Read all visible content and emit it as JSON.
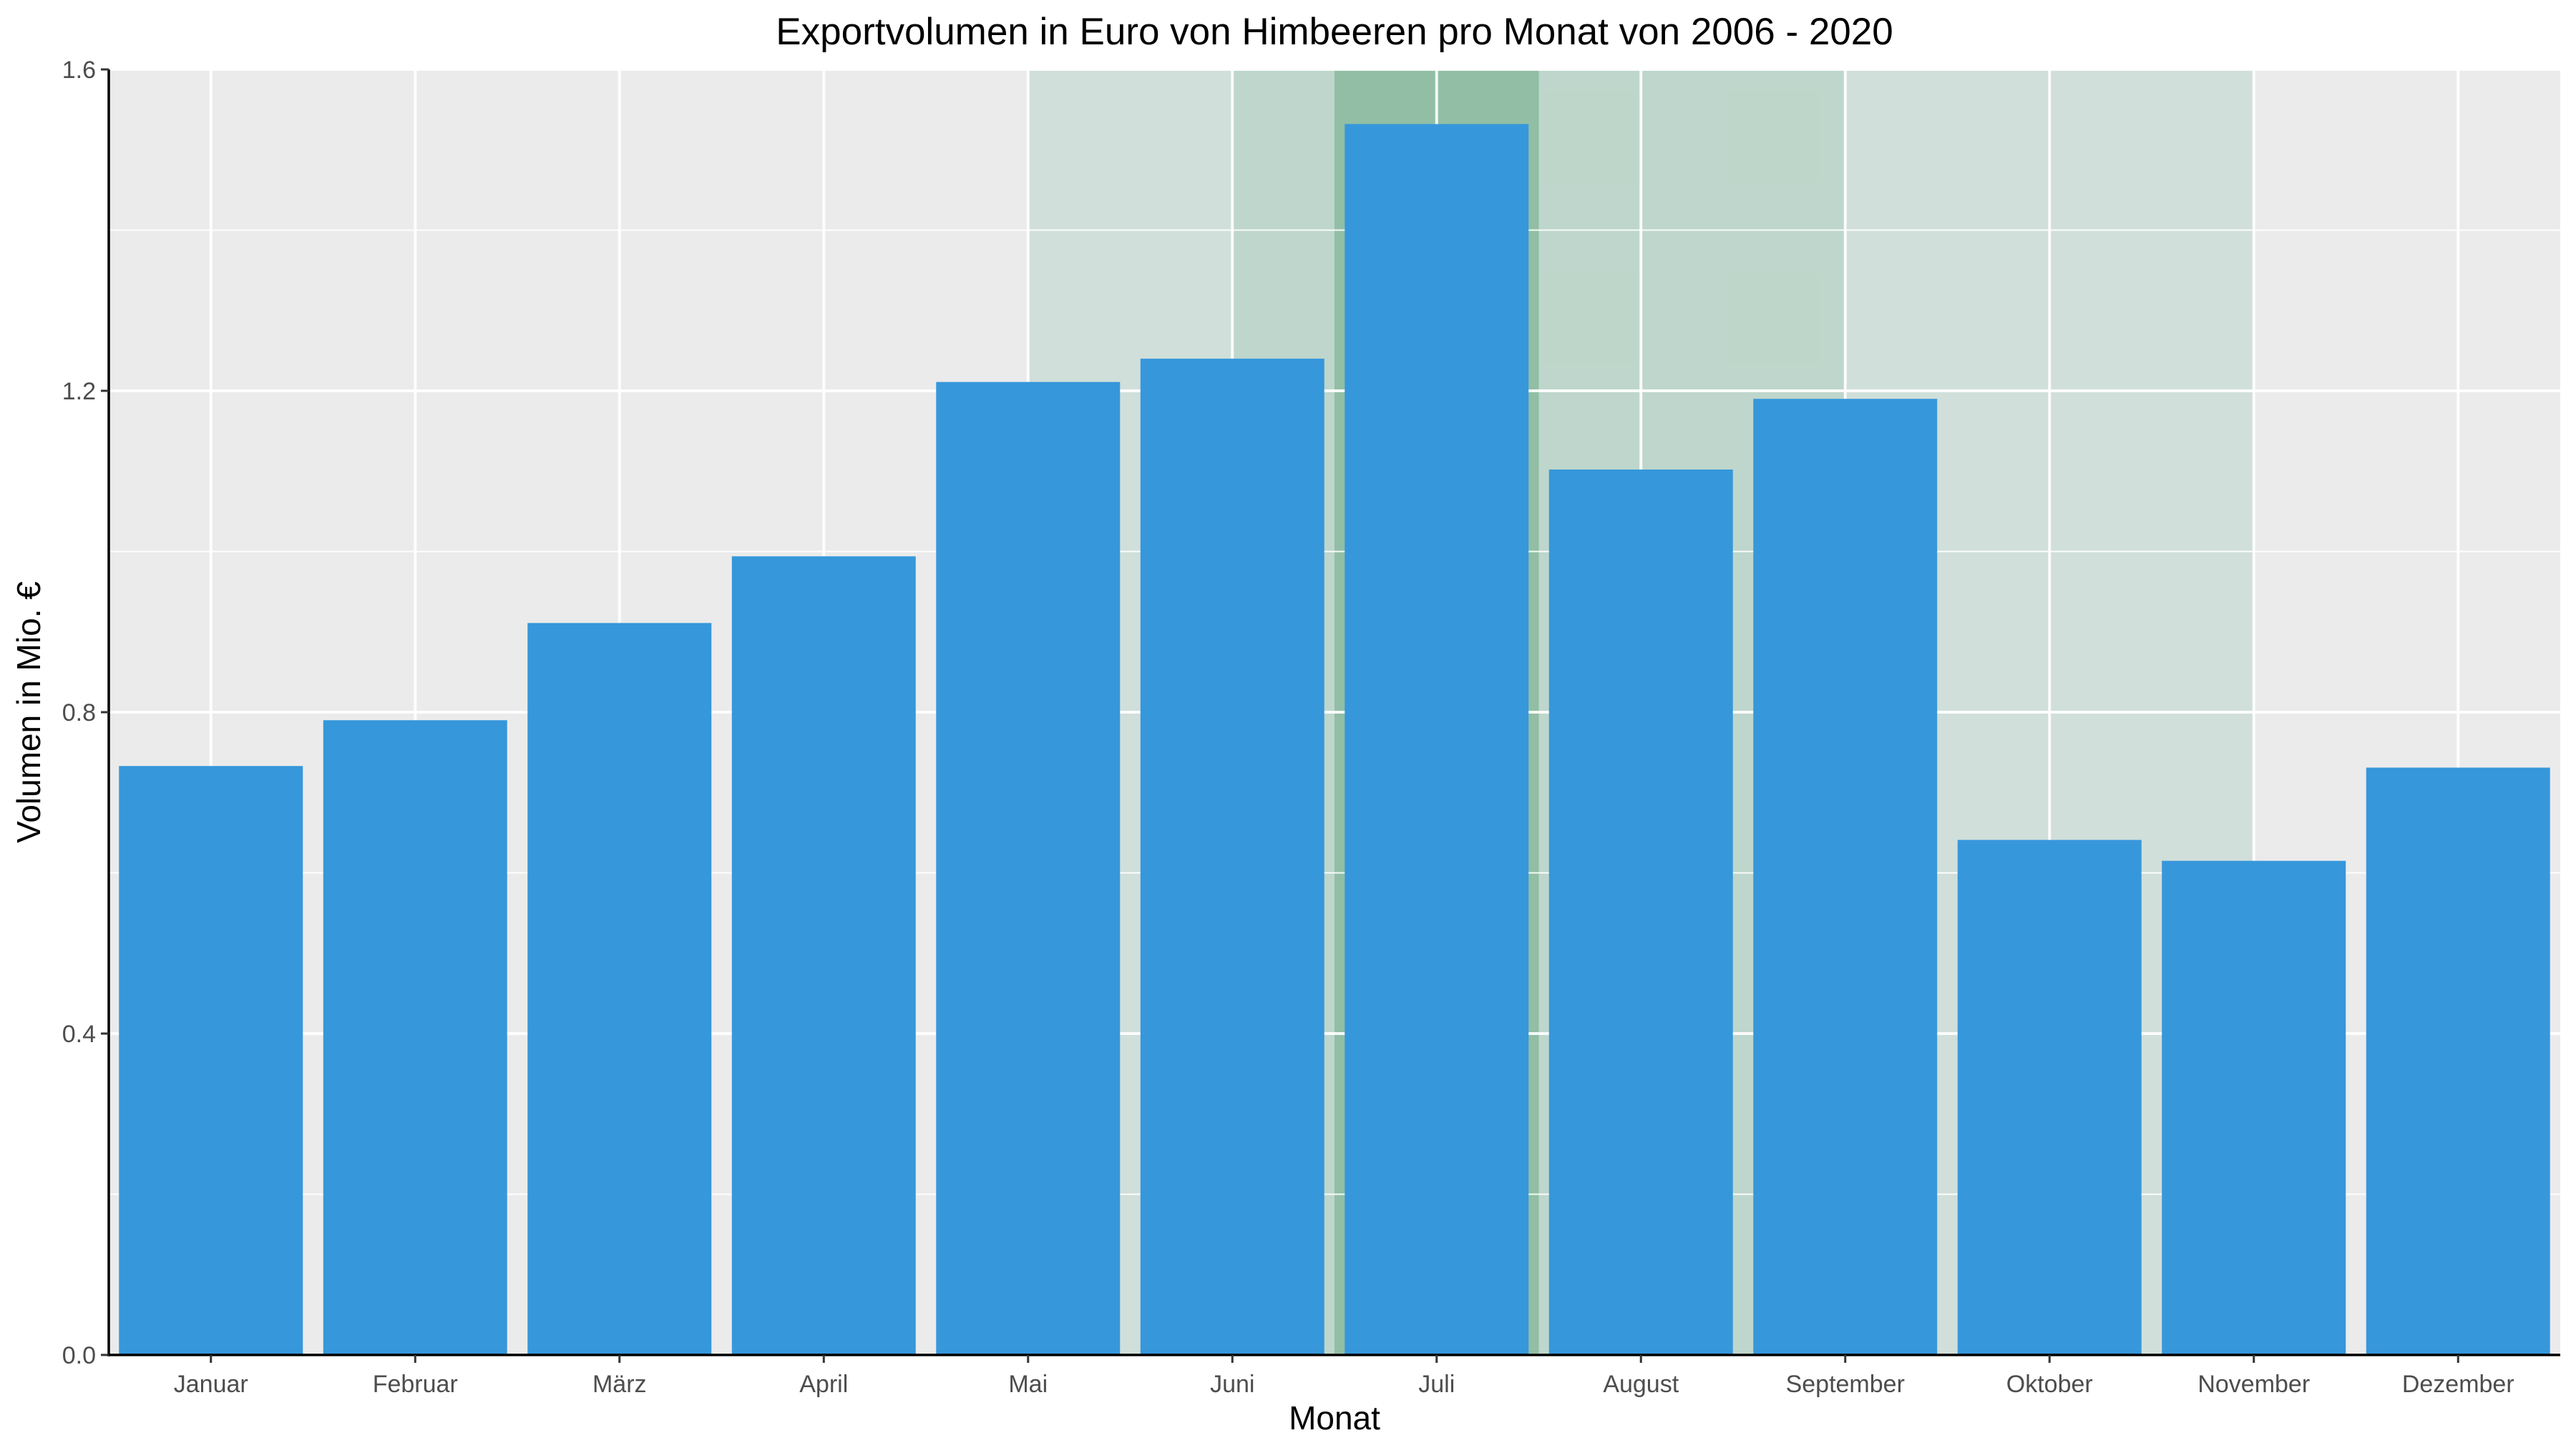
{
  "chart_data": {
    "type": "bar",
    "title": "Exportvolumen in Euro von Himbeeren pro Monat von 2006 - 2020",
    "xlabel": "Monat",
    "ylabel": "Volumen in Mio. €",
    "categories": [
      "Januar",
      "Februar",
      "März",
      "April",
      "Mai",
      "Juni",
      "Juli",
      "August",
      "September",
      "Oktober",
      "November",
      "Dezember"
    ],
    "values": [
      0.733,
      0.79,
      0.911,
      0.994,
      1.211,
      1.24,
      1.532,
      1.102,
      1.19,
      0.641,
      0.615,
      0.731
    ],
    "ylim": [
      0,
      1.6
    ],
    "yticks": [
      0.0,
      0.4,
      0.8,
      1.2,
      1.6
    ],
    "ytick_labels": [
      "0.0",
      "0.4",
      "0.8",
      "1.2",
      "1.6"
    ],
    "grid": true,
    "legend": "none",
    "highlight_bands": [
      {
        "from": "Mai",
        "to": "November",
        "level": "light"
      },
      {
        "from": "Juni",
        "to": "September",
        "level": "medium"
      },
      {
        "from": "Juli",
        "to": "Juli",
        "level": "strong"
      }
    ],
    "colors": {
      "bar": "#3697DB",
      "panel": "#EBEBEB",
      "grid": "#FFFFFF",
      "band_light": "#D0DFD9",
      "band_medium": "#B8D3C5",
      "band_strong": "#82B597",
      "axis": "#000000"
    }
  }
}
